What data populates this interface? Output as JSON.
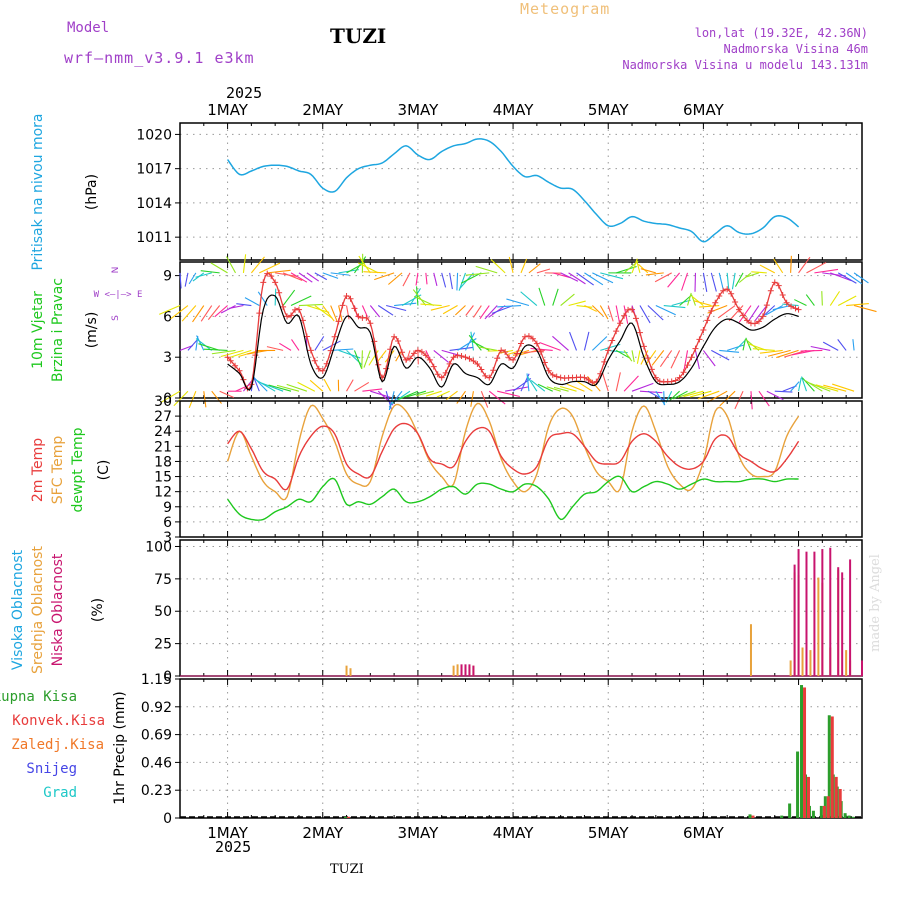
{
  "header": {
    "model_label": "Model",
    "model_name": "wrf–nmm_v3.9.1  e3km",
    "station": "TUZI",
    "product": "Meteogram",
    "coords": "lon,lat (19.32E, 42.36N)",
    "elevation": "Nadmorska Visina 46m",
    "model_elevation": "Nadmorska Visina u modelu 143.131m",
    "footer_station": "TUZI",
    "credit": "made by Angel",
    "year": "2025"
  },
  "colors": {
    "pressure": "#1ea6e0",
    "wind_speed": "#000000",
    "gust": "#e83c3c",
    "temp2m": "#e83c3c",
    "sfc_temp": "#e8a23c",
    "dewpoint": "#1ec81e",
    "high_cloud": "#1ea6e0",
    "mid_cloud": "#e8a23c",
    "low_cloud": "#c8146e",
    "total_precip": "#2c9e2c",
    "conv_precip": "#e83c3c",
    "freezing_precip": "#f07828",
    "snow": "#4646e6",
    "hail": "#1ec8c8"
  },
  "chart_data": [
    {
      "type": "line",
      "name": "pressure",
      "ylabel_lines": [
        "Pritisak na nivou mora",
        "(hPa)"
      ],
      "ylim": [
        1009,
        1021
      ],
      "yticks": [
        1011,
        1014,
        1017,
        1020
      ],
      "x_hours": [
        0,
        3,
        6,
        9,
        12,
        15,
        18,
        21,
        24,
        27,
        30,
        33,
        36,
        39,
        42,
        45,
        48,
        51,
        54,
        57,
        60,
        63,
        66,
        69,
        72,
        75,
        78,
        81,
        84,
        87,
        90,
        93,
        96,
        99,
        102,
        105,
        108,
        111,
        114,
        117,
        120,
        123,
        126,
        129,
        132,
        135,
        138,
        141,
        144
      ],
      "series": [
        {
          "name": "Pritisak na nivou mora",
          "values": [
            1017.8,
            1016.5,
            1016.8,
            1017.2,
            1017.3,
            1017.2,
            1016.8,
            1016.5,
            1015.3,
            1015.0,
            1016.2,
            1017.0,
            1017.3,
            1017.5,
            1018.3,
            1019.0,
            1018.2,
            1017.8,
            1018.5,
            1019.0,
            1019.2,
            1019.6,
            1019.4,
            1018.5,
            1017.2,
            1016.3,
            1016.4,
            1015.8,
            1015.3,
            1015.2,
            1014.2,
            1013.0,
            1012.0,
            1012.2,
            1012.8,
            1012.4,
            1012.2,
            1012.1,
            1011.8,
            1011.5,
            1010.6,
            1011.3,
            1012.0,
            1011.4,
            1011.3,
            1011.8,
            1012.8,
            1012.7,
            1011.9
          ]
        }
      ]
    },
    {
      "type": "line",
      "name": "wind",
      "ylabel_lines": [
        "10m Vjetar",
        "Brzina i Pravac",
        "(m/s)"
      ],
      "compass_lines": [
        "N",
        "W <–|–> E",
        "S"
      ],
      "ylim": [
        0,
        10
      ],
      "yticks": [
        0,
        3,
        6,
        9
      ],
      "x_hours": [
        0,
        3,
        6,
        9,
        12,
        15,
        18,
        21,
        24,
        27,
        30,
        33,
        36,
        39,
        42,
        45,
        48,
        51,
        54,
        57,
        60,
        63,
        66,
        69,
        72,
        75,
        78,
        81,
        84,
        87,
        90,
        93,
        96,
        99,
        102,
        105,
        108,
        111,
        114,
        117,
        120,
        123,
        126,
        129,
        132,
        135,
        138,
        141,
        144
      ],
      "series": [
        {
          "name": "10m speed",
          "values": [
            2.5,
            1.8,
            0.8,
            6.5,
            7.5,
            5.5,
            6.0,
            2.5,
            1.5,
            3.8,
            6.0,
            5.2,
            4.8,
            1.2,
            3.8,
            2.2,
            3.0,
            2.2,
            0.8,
            2.5,
            1.8,
            1.5,
            1.0,
            2.5,
            2.2,
            3.8,
            3.5,
            1.5,
            1.0,
            1.2,
            1.2,
            1.0,
            2.8,
            4.2,
            5.5,
            3.0,
            1.2,
            1.0,
            1.2,
            2.2,
            3.8,
            5.2,
            5.8,
            5.5,
            5.0,
            5.2,
            5.8,
            6.2,
            6.0
          ]
        },
        {
          "name": "gust",
          "values": [
            3.0,
            2.0,
            1.0,
            8.5,
            8.5,
            6.0,
            6.5,
            3.5,
            2.0,
            4.5,
            7.5,
            6.0,
            5.5,
            1.5,
            4.5,
            2.8,
            3.5,
            2.8,
            1.5,
            3.0,
            3.0,
            2.5,
            1.5,
            3.5,
            2.8,
            4.5,
            4.0,
            2.0,
            1.5,
            1.5,
            1.5,
            1.2,
            3.5,
            5.5,
            6.5,
            3.8,
            1.5,
            1.2,
            1.5,
            3.0,
            5.0,
            7.0,
            8.0,
            6.5,
            5.5,
            6.0,
            8.5,
            7.0,
            6.5
          ]
        }
      ],
      "vector_rows": [
        0.5,
        3.5,
        6.8,
        9.2
      ]
    },
    {
      "type": "line",
      "name": "temperature",
      "ylabel_lines": [
        "2m Temp",
        "SFC Temp",
        "dewpt Temp",
        "(C)"
      ],
      "ylim": [
        3,
        30
      ],
      "yticks": [
        3,
        6,
        9,
        12,
        15,
        18,
        21,
        24,
        27,
        30
      ],
      "x_hours": [
        0,
        3,
        6,
        9,
        12,
        15,
        18,
        21,
        24,
        27,
        30,
        33,
        36,
        39,
        42,
        45,
        48,
        51,
        54,
        57,
        60,
        63,
        66,
        69,
        72,
        75,
        78,
        81,
        84,
        87,
        90,
        93,
        96,
        99,
        102,
        105,
        108,
        111,
        114,
        117,
        120,
        123,
        126,
        129,
        132,
        135,
        138,
        141,
        144
      ],
      "series": [
        {
          "name": "2m Temp",
          "values": [
            21.5,
            24.0,
            20.5,
            16.0,
            14.5,
            12.5,
            19.0,
            23.0,
            25.0,
            23.5,
            17.5,
            15.5,
            15.0,
            20.0,
            24.5,
            25.5,
            23.5,
            18.5,
            17.5,
            17.0,
            22.0,
            24.5,
            24.0,
            19.0,
            16.5,
            15.5,
            17.0,
            22.5,
            23.5,
            23.5,
            21.0,
            18.0,
            17.5,
            18.0,
            22.0,
            23.5,
            22.0,
            19.0,
            17.0,
            16.5,
            18.0,
            22.5,
            23.0,
            19.5,
            18.0,
            16.5,
            16.0,
            18.5,
            22.0
          ]
        },
        {
          "name": "SFC Temp",
          "values": [
            18.0,
            24.0,
            19.0,
            14.0,
            12.0,
            11.0,
            22.0,
            29.0,
            26.5,
            22.0,
            15.5,
            13.5,
            14.0,
            23.0,
            29.0,
            28.0,
            23.5,
            18.0,
            15.0,
            13.5,
            24.0,
            29.5,
            26.0,
            18.5,
            14.0,
            12.0,
            15.5,
            25.0,
            28.5,
            27.0,
            21.0,
            16.0,
            14.0,
            12.5,
            24.0,
            29.0,
            24.0,
            17.0,
            13.5,
            12.5,
            18.0,
            28.0,
            27.0,
            19.0,
            15.5,
            15.0,
            16.0,
            23.0,
            27.0
          ]
        },
        {
          "name": "dewpt Temp",
          "values": [
            10.5,
            7.5,
            6.5,
            6.5,
            8.0,
            9.0,
            10.5,
            10.0,
            13.0,
            14.5,
            9.5,
            10.0,
            9.5,
            11.0,
            12.5,
            10.0,
            10.0,
            11.0,
            12.5,
            13.0,
            11.5,
            13.5,
            13.5,
            12.5,
            12.0,
            13.5,
            13.0,
            10.5,
            6.5,
            9.0,
            11.5,
            12.0,
            14.0,
            15.0,
            12.0,
            13.0,
            14.0,
            13.5,
            12.5,
            13.5,
            14.5,
            14.0,
            14.0,
            14.0,
            14.5,
            14.5,
            14.0,
            14.5,
            14.5
          ]
        }
      ]
    },
    {
      "type": "bar",
      "name": "cloud",
      "ylabel_lines": [
        "Visoka Oblacnost",
        "Srednja Oblacnost",
        "Niska Oblacnost",
        "(%)"
      ],
      "ylim": [
        0,
        105
      ],
      "yticks": [
        0,
        25,
        50,
        75,
        100
      ],
      "series": [
        {
          "name": "Visoka Oblacnost",
          "hours": [],
          "values": []
        },
        {
          "name": "Srednja Oblacnost",
          "hours": [
            30,
            31,
            57,
            58,
            59,
            60,
            61,
            62,
            132,
            142,
            143,
            144,
            145,
            147,
            149,
            150,
            152,
            154,
            156,
            157
          ],
          "values": [
            8,
            6,
            8,
            9,
            8,
            8,
            7,
            8,
            40,
            12,
            80,
            78,
            22,
            20,
            76,
            72,
            22,
            82,
            20,
            12
          ]
        },
        {
          "name": "Niska Oblacnost",
          "hours": [
            59,
            60,
            61,
            62,
            143,
            144,
            146,
            148,
            150,
            152,
            154,
            155,
            157,
            160
          ],
          "values": [
            9,
            9,
            9,
            8,
            86,
            98,
            96,
            96,
            98,
            99,
            84,
            80,
            90,
            12
          ]
        }
      ]
    },
    {
      "type": "bar",
      "name": "precipitation",
      "ylabel_lines": [
        "1hr Precip (mm)"
      ],
      "legend": [
        "Ukupna  Kisa",
        "Konvek.Kisa",
        "Zaledj.Kisa",
        "Snijeg",
        "Grad"
      ],
      "ylim": [
        0,
        1.15
      ],
      "yticks": [
        0,
        0.23,
        0.46,
        0.69,
        0.92,
        1.15
      ],
      "series": [
        {
          "name": "Ukupna Kisa",
          "hours": [
            30,
            132,
            140,
            142,
            144,
            145,
            146,
            147,
            148,
            150,
            151,
            152,
            153,
            154,
            155,
            156,
            157,
            158
          ],
          "values": [
            0.01,
            0.03,
            0.02,
            0.12,
            0.55,
            1.1,
            0.36,
            0.1,
            0.06,
            0.1,
            0.18,
            0.85,
            0.36,
            0.26,
            0.14,
            0.04,
            0.02,
            0.01
          ]
        },
        {
          "name": "Konvek.Kisa",
          "hours": [
            30,
            132,
            145,
            146,
            150,
            151,
            152,
            153,
            154
          ],
          "values": [
            0.01,
            0.02,
            1.08,
            0.34,
            0.1,
            0.18,
            0.84,
            0.34,
            0.24
          ]
        }
      ]
    }
  ],
  "time_axis": {
    "start_hour": -12,
    "end_hour": 160,
    "day_labels": [
      "1MAY",
      "2MAY",
      "3MAY",
      "4MAY",
      "5MAY",
      "6MAY"
    ],
    "day_hours": [
      0,
      24,
      48,
      72,
      96,
      120
    ]
  }
}
